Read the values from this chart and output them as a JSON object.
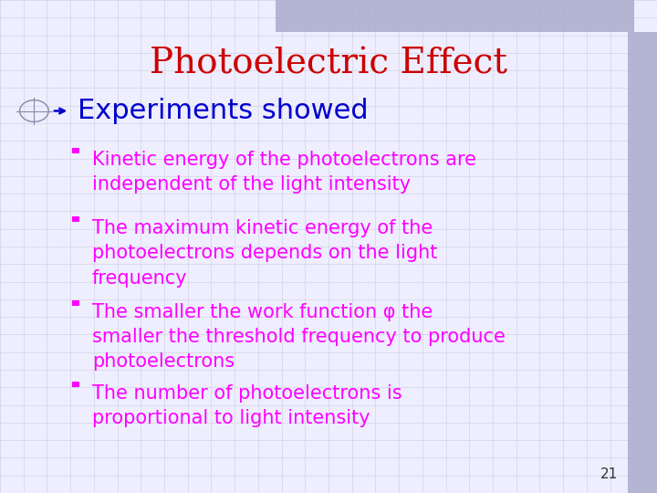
{
  "title": "Photoelectric Effect",
  "title_color": "#CC0000",
  "title_fontsize": 28,
  "bg_color": "#EEEEFF",
  "header_color": "#0000CC",
  "header_fontsize": 22,
  "bullet_color": "#FF00FF",
  "bullet_marker_color": "#FF00FF",
  "bullet_fontsize": 15,
  "bullets": [
    "Kinetic energy of the photoelectrons are\nindependent of the light intensity",
    "The maximum kinetic energy of the\nphotoelectrons depends on the light\nfrequency",
    "The smaller the work function φ the\nsmaller the threshold frequency to produce\nphotoelectrons",
    "The number of photoelectrons is\nproportional to light intensity"
  ],
  "slide_number": "21",
  "grid_color": "#CCCCDD",
  "top_bar_color": "#AAAACC",
  "right_bar_color": "#AAAACC"
}
